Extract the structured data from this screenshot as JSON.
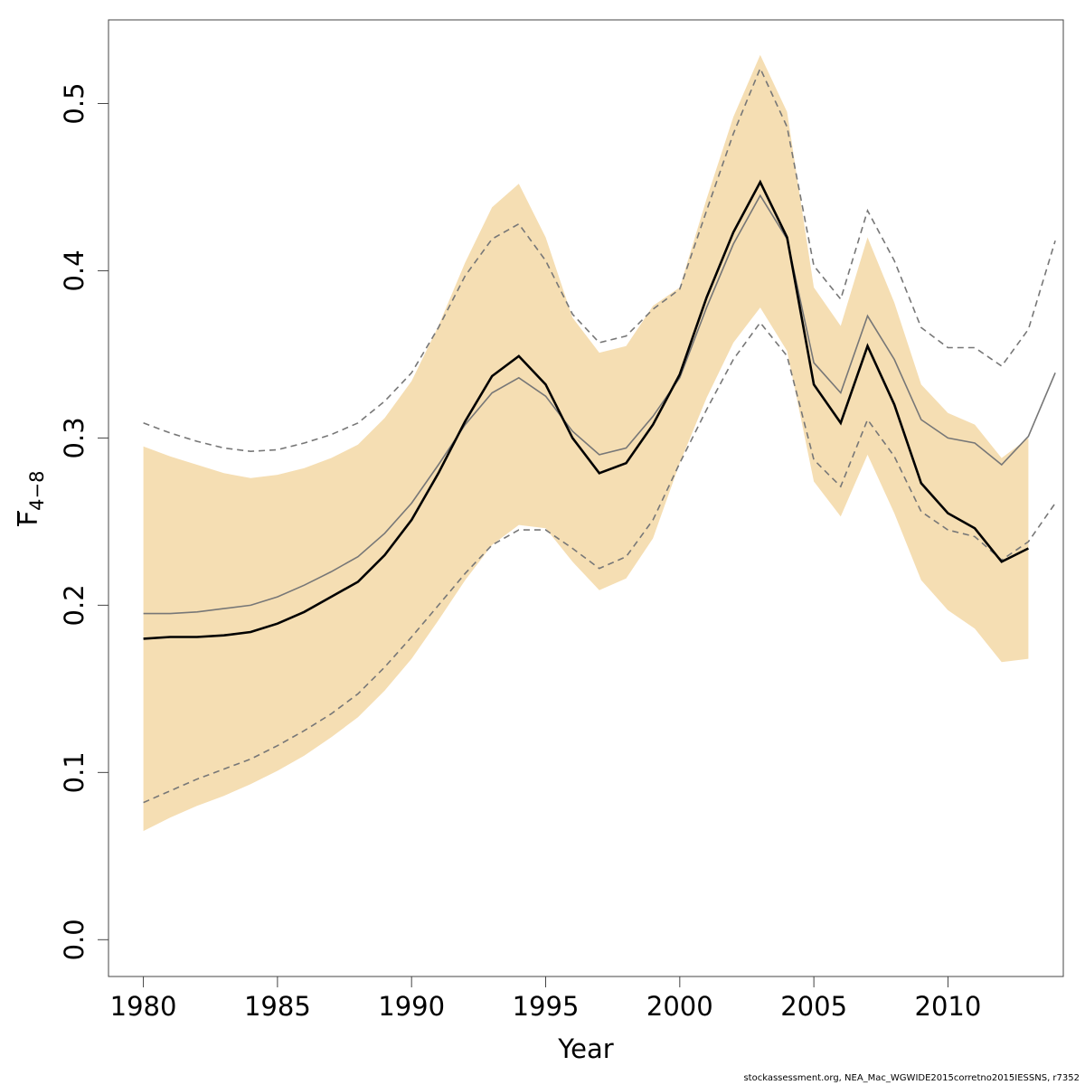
{
  "chart_data": {
    "type": "line",
    "xlabel": "Year",
    "ylabel": {
      "main": "F",
      "sub": "4−8"
    },
    "xlim": [
      1978.7,
      2014.3
    ],
    "ylim": [
      -0.022,
      0.55
    ],
    "x_ticks": [
      1980,
      1985,
      1990,
      1995,
      2000,
      2005,
      2010
    ],
    "y_ticks": [
      0.0,
      0.1,
      0.2,
      0.3,
      0.4,
      0.5
    ],
    "y_tick_labels": [
      "0.0",
      "0.1",
      "0.2",
      "0.3",
      "0.4",
      "0.5"
    ],
    "colors": {
      "band": "#f5deb3",
      "estimate": "#000000",
      "previous": "#777777"
    },
    "grid": false,
    "series": [
      {
        "role": "band-upper",
        "x": [
          1980,
          1981,
          1982,
          1983,
          1984,
          1985,
          1986,
          1987,
          1988,
          1989,
          1990,
          1991,
          1992,
          1993,
          1994,
          1995,
          1996,
          1997,
          1998,
          1999,
          2000,
          2001,
          2002,
          2003,
          2004,
          2005,
          2006,
          2007,
          2008,
          2009,
          2010,
          2011,
          2012,
          2013
        ],
        "values": [
          0.295,
          0.289,
          0.284,
          0.279,
          0.276,
          0.278,
          0.282,
          0.288,
          0.296,
          0.312,
          0.334,
          0.367,
          0.405,
          0.438,
          0.452,
          0.42,
          0.372,
          0.351,
          0.355,
          0.379,
          0.39,
          0.443,
          0.492,
          0.529,
          0.495,
          0.39,
          0.367,
          0.42,
          0.381,
          0.332,
          0.315,
          0.308,
          0.288,
          0.3
        ]
      },
      {
        "role": "band-lower",
        "x": [
          1980,
          1981,
          1982,
          1983,
          1984,
          1985,
          1986,
          1987,
          1988,
          1989,
          1990,
          1991,
          1992,
          1993,
          1994,
          1995,
          1996,
          1997,
          1998,
          1999,
          2000,
          2001,
          2002,
          2003,
          2004,
          2005,
          2006,
          2007,
          2008,
          2009,
          2010,
          2011,
          2012,
          2013
        ],
        "values": [
          0.065,
          0.073,
          0.08,
          0.086,
          0.093,
          0.101,
          0.11,
          0.121,
          0.133,
          0.149,
          0.168,
          0.191,
          0.215,
          0.236,
          0.248,
          0.246,
          0.226,
          0.209,
          0.216,
          0.24,
          0.285,
          0.324,
          0.357,
          0.378,
          0.352,
          0.274,
          0.253,
          0.29,
          0.255,
          0.215,
          0.197,
          0.186,
          0.166,
          0.168
        ]
      },
      {
        "role": "estimate",
        "x": [
          1980,
          1981,
          1982,
          1983,
          1984,
          1985,
          1986,
          1987,
          1988,
          1989,
          1990,
          1991,
          1992,
          1993,
          1994,
          1995,
          1996,
          1997,
          1998,
          1999,
          2000,
          2001,
          2002,
          2003,
          2004,
          2005,
          2006,
          2007,
          2008,
          2009,
          2010,
          2011,
          2012,
          2013
        ],
        "values": [
          0.18,
          0.181,
          0.181,
          0.182,
          0.184,
          0.189,
          0.196,
          0.205,
          0.214,
          0.23,
          0.251,
          0.279,
          0.31,
          0.337,
          0.349,
          0.332,
          0.3,
          0.279,
          0.285,
          0.308,
          0.338,
          0.384,
          0.423,
          0.453,
          0.42,
          0.332,
          0.309,
          0.355,
          0.32,
          0.273,
          0.255,
          0.246,
          0.226,
          0.234
        ]
      },
      {
        "role": "previous-estimate",
        "x": [
          1980,
          1981,
          1982,
          1983,
          1984,
          1985,
          1986,
          1987,
          1988,
          1989,
          1990,
          1991,
          1992,
          1993,
          1994,
          1995,
          1996,
          1997,
          1998,
          1999,
          2000,
          2001,
          2002,
          2003,
          2004,
          2005,
          2006,
          2007,
          2008,
          2009,
          2010,
          2011,
          2012,
          2013,
          2014
        ],
        "values": [
          0.195,
          0.195,
          0.196,
          0.198,
          0.2,
          0.205,
          0.212,
          0.22,
          0.229,
          0.243,
          0.261,
          0.284,
          0.308,
          0.327,
          0.336,
          0.325,
          0.304,
          0.29,
          0.294,
          0.313,
          0.336,
          0.378,
          0.416,
          0.445,
          0.419,
          0.345,
          0.327,
          0.373,
          0.347,
          0.311,
          0.3,
          0.297,
          0.284,
          0.301,
          0.339
        ]
      },
      {
        "role": "previous-upper",
        "x": [
          1980,
          1981,
          1982,
          1983,
          1984,
          1985,
          1986,
          1987,
          1988,
          1989,
          1990,
          1991,
          1992,
          1993,
          1994,
          1995,
          1996,
          1997,
          1998,
          1999,
          2000,
          2001,
          2002,
          2003,
          2004,
          2005,
          2006,
          2007,
          2008,
          2009,
          2010,
          2011,
          2012,
          2013,
          2014
        ],
        "values": [
          0.309,
          0.303,
          0.298,
          0.294,
          0.292,
          0.293,
          0.297,
          0.302,
          0.309,
          0.322,
          0.339,
          0.366,
          0.397,
          0.419,
          0.428,
          0.406,
          0.374,
          0.357,
          0.361,
          0.377,
          0.389,
          0.436,
          0.482,
          0.521,
          0.486,
          0.403,
          0.383,
          0.436,
          0.406,
          0.366,
          0.354,
          0.354,
          0.343,
          0.365,
          0.418
        ]
      },
      {
        "role": "previous-lower",
        "x": [
          1980,
          1981,
          1982,
          1983,
          1984,
          1985,
          1986,
          1987,
          1988,
          1989,
          1990,
          1991,
          1992,
          1993,
          1994,
          1995,
          1996,
          1997,
          1998,
          1999,
          2000,
          2001,
          2002,
          2003,
          2004,
          2005,
          2006,
          2007,
          2008,
          2009,
          2010,
          2011,
          2012,
          2013,
          2014
        ],
        "values": [
          0.082,
          0.089,
          0.096,
          0.102,
          0.108,
          0.116,
          0.125,
          0.135,
          0.147,
          0.163,
          0.181,
          0.2,
          0.219,
          0.236,
          0.245,
          0.245,
          0.234,
          0.222,
          0.229,
          0.251,
          0.285,
          0.317,
          0.347,
          0.369,
          0.349,
          0.287,
          0.271,
          0.311,
          0.289,
          0.256,
          0.245,
          0.241,
          0.227,
          0.238,
          0.261
        ]
      }
    ]
  },
  "footnote": "stockassessment.org, NEA_Mac_WGWIDE2015corretno2015IESSNS, r7352"
}
